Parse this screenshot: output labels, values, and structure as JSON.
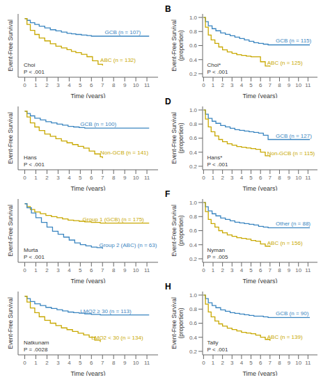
{
  "chart_data": [
    {
      "type": "step",
      "xlabel": "Time (years)",
      "ylabel": "Event-Free Survival",
      "xlim": [
        -0.6,
        12.0
      ],
      "xticks": [
        0,
        1,
        2,
        3,
        4,
        5,
        6,
        7,
        8,
        9,
        10,
        11
      ],
      "ylim": [
        0,
        1.08
      ],
      "tick_labels": "x",
      "grid": false,
      "annotations": [
        {
          "text": "Choi\nP < .001"
        }
      ],
      "series": [
        {
          "name": "GCB (n = 107)",
          "color": "#3a85c0",
          "x": [
            0,
            0.2,
            0.5,
            0.9,
            1.3,
            1.8,
            2.3,
            2.8,
            3.3,
            3.8,
            4.2,
            4.6,
            5.1,
            5.6,
            6.0,
            6.5,
            7.0,
            8.0,
            9.5,
            11.2
          ],
          "values": [
            1.0,
            0.97,
            0.93,
            0.9,
            0.87,
            0.84,
            0.81,
            0.79,
            0.77,
            0.75,
            0.74,
            0.73,
            0.72,
            0.71,
            0.7,
            0.7,
            0.7,
            0.7,
            0.7,
            0.7
          ],
          "label_x": 7.2,
          "label_y": 0.7
        },
        {
          "name": "ABC (n = 132)",
          "color": "#c8a800",
          "x": [
            0,
            0.2,
            0.5,
            0.9,
            1.3,
            1.8,
            2.3,
            2.8,
            3.3,
            3.8,
            4.2,
            4.6,
            5.1,
            5.6,
            6.1,
            6.6,
            7.0
          ],
          "values": [
            1.0,
            0.9,
            0.8,
            0.73,
            0.67,
            0.62,
            0.57,
            0.53,
            0.5,
            0.47,
            0.44,
            0.42,
            0.39,
            0.35,
            0.28,
            0.22,
            0.2
          ],
          "label_x": 6.8,
          "label_y": 0.22
        }
      ]
    },
    {
      "type": "step",
      "title": "B",
      "xlabel": "Time (years)",
      "ylabel": "Event-Free Survival\n(proportion)",
      "xlim": [
        -0.1,
        12.0
      ],
      "xticks": [
        0,
        1,
        2,
        3,
        4,
        5,
        6,
        7,
        8,
        9,
        10,
        11
      ],
      "ylim": [
        0.15,
        1.05
      ],
      "yticks": [
        0.2,
        0.4,
        0.6,
        0.8,
        {
          "value": 1.0,
          "label": "1.0"
        }
      ],
      "grid": false,
      "annotations": [
        {
          "text": "Choi*\nP < .001"
        }
      ],
      "series": [
        {
          "name": "GCB (n = 115)",
          "color": "#3a85c0",
          "x": [
            0,
            0.2,
            0.5,
            0.9,
            1.3,
            1.8,
            2.3,
            2.8,
            3.3,
            3.8,
            4.3,
            4.8,
            5.3,
            5.8,
            6.3,
            6.8,
            7.5,
            11.2
          ],
          "values": [
            1.0,
            0.94,
            0.88,
            0.84,
            0.81,
            0.78,
            0.76,
            0.74,
            0.72,
            0.7,
            0.68,
            0.66,
            0.64,
            0.63,
            0.62,
            0.61,
            0.61,
            0.61
          ],
          "label_x": 7.6,
          "label_y": 0.61
        },
        {
          "name": "ABC (n = 125)",
          "color": "#c8a800",
          "x": [
            0,
            0.2,
            0.5,
            0.8,
            1.2,
            1.6,
            2.0,
            2.5,
            3.0,
            3.5,
            4.0,
            4.5,
            5.0,
            5.5,
            6.0,
            6.5,
            7.0
          ],
          "values": [
            1.0,
            0.86,
            0.75,
            0.68,
            0.63,
            0.58,
            0.54,
            0.51,
            0.49,
            0.47,
            0.46,
            0.45,
            0.44,
            0.44,
            0.37,
            0.31,
            0.3
          ],
          "label_x": 6.7,
          "label_y": 0.3
        }
      ]
    },
    {
      "type": "step",
      "xlabel": "Time (years)",
      "ylabel": "Event-Free Survival",
      "xlim": [
        -0.6,
        12.0
      ],
      "xticks": [
        0,
        1,
        2,
        3,
        4,
        5,
        6,
        7,
        8,
        9,
        10,
        11
      ],
      "ylim": [
        0,
        1.08
      ],
      "tick_labels": "x",
      "grid": false,
      "annotations": [
        {
          "text": "Hans\nP < .001"
        }
      ],
      "series": [
        {
          "name": "GCB (n = 100)",
          "color": "#3a85c0",
          "x": [
            0,
            0.2,
            0.5,
            0.9,
            1.4,
            1.9,
            2.4,
            2.9,
            3.4,
            3.9,
            4.4,
            4.9,
            5.4,
            6.0,
            6.8,
            8.0,
            11.2
          ],
          "values": [
            1.0,
            0.96,
            0.92,
            0.88,
            0.85,
            0.82,
            0.8,
            0.78,
            0.76,
            0.74,
            0.73,
            0.72,
            0.71,
            0.71,
            0.71,
            0.71,
            0.71
          ],
          "label_x": 5.0,
          "label_y": 0.71
        },
        {
          "name": "Non-GCB (n = 141)",
          "color": "#c8a800",
          "x": [
            0,
            0.2,
            0.5,
            0.9,
            1.3,
            1.8,
            2.3,
            2.8,
            3.3,
            3.8,
            4.3,
            4.8,
            5.3,
            5.8,
            6.3,
            6.8,
            7.0
          ],
          "values": [
            1.0,
            0.9,
            0.8,
            0.73,
            0.67,
            0.61,
            0.57,
            0.53,
            0.49,
            0.46,
            0.43,
            0.4,
            0.37,
            0.32,
            0.27,
            0.22,
            0.2
          ],
          "label_x": 6.8,
          "label_y": 0.22
        }
      ]
    },
    {
      "type": "step",
      "title": "D",
      "xlabel": "Time (years)",
      "ylabel": "Event-Free Survival\n(proportion)",
      "xlim": [
        -0.1,
        12.0
      ],
      "xticks": [
        0,
        1,
        2,
        3,
        4,
        5,
        6,
        7,
        8,
        9,
        10,
        11
      ],
      "ylim": [
        0.15,
        1.05
      ],
      "yticks": [
        0.2,
        0.4,
        0.6,
        0.8,
        {
          "value": 1.0,
          "label": "1.0"
        }
      ],
      "grid": false,
      "annotations": [
        {
          "text": "Hans*\nP < .001"
        }
      ],
      "series": [
        {
          "name": "GCB (n = 127)",
          "color": "#3a85c0",
          "x": [
            0,
            0.2,
            0.5,
            0.9,
            1.3,
            1.8,
            2.3,
            2.8,
            3.3,
            3.8,
            4.3,
            4.8,
            5.3,
            5.8,
            6.3,
            6.8,
            7.5,
            11.2
          ],
          "values": [
            1.0,
            0.94,
            0.88,
            0.84,
            0.81,
            0.78,
            0.76,
            0.74,
            0.72,
            0.71,
            0.7,
            0.69,
            0.68,
            0.67,
            0.64,
            0.58,
            0.58,
            0.58
          ],
          "label_x": 7.6,
          "label_y": 0.58
        },
        {
          "name": "Non-GCB (n = 115)",
          "color": "#c8a800",
          "x": [
            0,
            0.2,
            0.5,
            0.8,
            1.2,
            1.6,
            2.0,
            2.5,
            3.0,
            3.5,
            4.0,
            4.5,
            5.0,
            5.5,
            6.0,
            6.5,
            7.0
          ],
          "values": [
            1.0,
            0.87,
            0.76,
            0.69,
            0.63,
            0.58,
            0.55,
            0.52,
            0.5,
            0.48,
            0.47,
            0.46,
            0.45,
            0.44,
            0.4,
            0.35,
            0.33
          ],
          "label_x": 6.7,
          "label_y": 0.33
        }
      ]
    },
    {
      "type": "step",
      "xlabel": "Time (years)",
      "ylabel": "Event-Free Survival",
      "xlim": [
        -0.6,
        12.0
      ],
      "xticks": [
        0,
        1,
        2,
        3,
        4,
        5,
        6,
        7,
        8,
        9,
        10,
        11
      ],
      "ylim": [
        0,
        1.08
      ],
      "tick_labels": "x",
      "grid": false,
      "annotations": [
        {
          "text": "Murta\nP < .001"
        }
      ],
      "series": [
        {
          "name": "Group 1 (GCB) (n = 175)",
          "color": "#c8a800",
          "x": [
            0,
            0.2,
            0.5,
            0.9,
            1.4,
            1.9,
            2.4,
            2.9,
            3.4,
            3.9,
            4.4,
            4.9,
            5.4,
            6.0,
            6.8,
            8.0,
            11.2
          ],
          "values": [
            1.0,
            0.95,
            0.9,
            0.86,
            0.83,
            0.8,
            0.78,
            0.76,
            0.74,
            0.72,
            0.71,
            0.7,
            0.69,
            0.68,
            0.67,
            0.67,
            0.67
          ],
          "label_x": 5.2,
          "label_y": 0.67
        },
        {
          "name": "Group 2 (ABC) (n = 63)",
          "color": "#3a85c0",
          "x": [
            0,
            0.2,
            0.6,
            1.0,
            1.5,
            2.0,
            2.5,
            3.0,
            3.5,
            4.0,
            4.5,
            5.0,
            5.5,
            6.0,
            6.5,
            7.0
          ],
          "values": [
            1.0,
            0.93,
            0.84,
            0.76,
            0.68,
            0.6,
            0.53,
            0.48,
            0.43,
            0.38,
            0.33,
            0.3,
            0.28,
            0.26,
            0.25,
            0.23
          ],
          "label_x": 6.7,
          "label_y": 0.23
        }
      ]
    },
    {
      "type": "step",
      "title": "F",
      "xlabel": "Time (years)",
      "ylabel": "Event-Free Survival\n(proportion)",
      "xlim": [
        -0.1,
        12.0
      ],
      "xticks": [
        0,
        1,
        2,
        3,
        4,
        5,
        6,
        7,
        8,
        9,
        10,
        11
      ],
      "ylim": [
        0.15,
        1.05
      ],
      "yticks": [
        0.2,
        0.4,
        0.6,
        0.8,
        {
          "value": 1.0,
          "label": "1.0"
        }
      ],
      "grid": false,
      "annotations": [
        {
          "text": "Nyman\nP = .005"
        }
      ],
      "series": [
        {
          "name": "Other (n = 88)",
          "color": "#3a85c0",
          "x": [
            0,
            0.2,
            0.5,
            0.9,
            1.3,
            1.8,
            2.3,
            2.8,
            3.3,
            3.8,
            4.3,
            4.8,
            5.3,
            5.8,
            6.3,
            6.8,
            7.5,
            11.2
          ],
          "values": [
            1.0,
            0.94,
            0.88,
            0.84,
            0.81,
            0.78,
            0.76,
            0.74,
            0.72,
            0.71,
            0.7,
            0.69,
            0.68,
            0.66,
            0.65,
            0.64,
            0.64,
            0.64
          ],
          "label_x": 7.6,
          "label_y": 0.64
        },
        {
          "name": "ABC (n = 156)",
          "color": "#c8a800",
          "x": [
            0,
            0.2,
            0.5,
            0.8,
            1.2,
            1.6,
            2.0,
            2.5,
            3.0,
            3.5,
            4.0,
            4.5,
            5.0,
            5.5,
            6.0,
            6.5,
            7.0
          ],
          "values": [
            1.0,
            0.87,
            0.76,
            0.7,
            0.65,
            0.6,
            0.57,
            0.54,
            0.52,
            0.5,
            0.49,
            0.48,
            0.46,
            0.45,
            0.41,
            0.38,
            0.37
          ],
          "label_x": 6.7,
          "label_y": 0.37
        }
      ]
    },
    {
      "type": "step",
      "xlabel": "Time (years)",
      "ylabel": "Event-Free Survival",
      "xlim": [
        -0.6,
        12.0
      ],
      "xticks": [
        0,
        1,
        2,
        3,
        4,
        5,
        6,
        7,
        8,
        9,
        10,
        11
      ],
      "ylim": [
        0,
        1.08
      ],
      "tick_labels": "x",
      "grid": false,
      "annotations": [
        {
          "text": "Natkunam\nP = .0028"
        }
      ],
      "series": [
        {
          "name": "LMO2 ≥ 30 (n = 113)",
          "color": "#3a85c0",
          "x": [
            0,
            0.2,
            0.5,
            0.9,
            1.4,
            1.9,
            2.4,
            2.9,
            3.4,
            3.9,
            4.4,
            4.9,
            5.4,
            6.0,
            6.8,
            8.0,
            11.2
          ],
          "values": [
            1.0,
            0.96,
            0.91,
            0.87,
            0.84,
            0.81,
            0.79,
            0.77,
            0.75,
            0.73,
            0.72,
            0.71,
            0.7,
            0.69,
            0.68,
            0.68,
            0.68
          ],
          "label_x": 5.0,
          "label_y": 0.68
        },
        {
          "name": "LMO2 < 30 (n = 134)",
          "color": "#c8a800",
          "x": [
            0,
            0.2,
            0.5,
            0.9,
            1.3,
            1.8,
            2.3,
            2.8,
            3.3,
            3.8,
            4.3,
            4.8,
            5.3,
            5.8,
            6.3,
            6.8
          ],
          "values": [
            1.0,
            0.9,
            0.8,
            0.72,
            0.65,
            0.59,
            0.54,
            0.5,
            0.46,
            0.43,
            0.4,
            0.37,
            0.34,
            0.3,
            0.25,
            0.22
          ],
          "label_x": 6.0,
          "label_y": 0.22
        }
      ]
    },
    {
      "type": "step",
      "title": "H",
      "xlabel": "Time (years)",
      "ylabel": "Event-Free Survival\n(proportion)",
      "xlim": [
        -0.1,
        12.0
      ],
      "xticks": [
        0,
        1,
        2,
        3,
        4,
        5,
        6,
        7,
        8,
        9,
        10,
        11
      ],
      "ylim": [
        0.15,
        1.05
      ],
      "yticks": [
        0.2,
        0.4,
        0.6,
        0.8,
        {
          "value": 1.0,
          "label": "1.0"
        }
      ],
      "grid": false,
      "annotations": [
        {
          "text": "Tally\nP < .001"
        }
      ],
      "series": [
        {
          "name": "GCB (n = 90)",
          "color": "#3a85c0",
          "x": [
            0,
            0.2,
            0.5,
            0.9,
            1.3,
            1.8,
            2.3,
            2.8,
            3.3,
            3.8,
            4.3,
            4.8,
            5.3,
            5.8,
            6.3,
            6.8,
            7.5,
            11.2
          ],
          "values": [
            1.0,
            0.95,
            0.89,
            0.85,
            0.82,
            0.79,
            0.77,
            0.75,
            0.74,
            0.73,
            0.72,
            0.71,
            0.7,
            0.7,
            0.69,
            0.68,
            0.68,
            0.68
          ],
          "label_x": 7.6,
          "label_y": 0.68
        },
        {
          "name": "ABC (n = 139)",
          "color": "#c8a800",
          "x": [
            0,
            0.2,
            0.5,
            0.8,
            1.2,
            1.6,
            2.0,
            2.5,
            3.0,
            3.5,
            4.0,
            4.5,
            5.0,
            5.5,
            6.0,
            6.5,
            7.0
          ],
          "values": [
            1.0,
            0.87,
            0.76,
            0.69,
            0.63,
            0.59,
            0.56,
            0.53,
            0.51,
            0.49,
            0.47,
            0.46,
            0.45,
            0.43,
            0.4,
            0.37,
            0.35
          ],
          "label_x": 6.7,
          "label_y": 0.35
        }
      ]
    }
  ]
}
